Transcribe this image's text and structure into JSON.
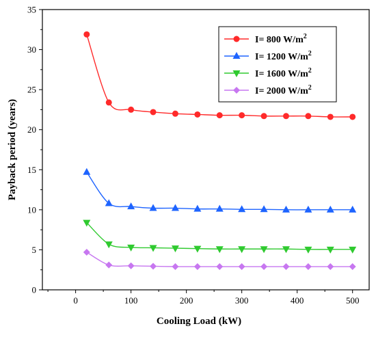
{
  "chart_data": {
    "type": "line",
    "title": "",
    "xlabel": "Cooling Load (kW)",
    "ylabel": "Payback period (years)",
    "xlim": [
      -60,
      530
    ],
    "ylim": [
      0,
      35
    ],
    "xticks": [
      0,
      100,
      200,
      300,
      400,
      500
    ],
    "yticks": [
      0,
      5,
      10,
      15,
      20,
      25,
      30,
      35
    ],
    "legend_position": "top-right",
    "grid": false,
    "x": [
      20,
      60,
      100,
      140,
      180,
      220,
      260,
      300,
      340,
      380,
      420,
      460,
      500
    ],
    "series": [
      {
        "legend_prefix": "I= 800 W/m",
        "legend_sup": "2",
        "color": "#ff2a2a",
        "marker": "circle",
        "values": [
          31.9,
          23.4,
          22.5,
          22.2,
          22.0,
          21.9,
          21.8,
          21.8,
          21.7,
          21.7,
          21.7,
          21.6,
          21.6
        ]
      },
      {
        "legend_prefix": "I= 1200 W/m",
        "legend_sup": "2",
        "color": "#1e64ff",
        "marker": "triangle-up",
        "values": [
          14.7,
          10.8,
          10.4,
          10.2,
          10.2,
          10.1,
          10.1,
          10.05,
          10.05,
          10.0,
          10.0,
          10.0,
          10.0
        ]
      },
      {
        "legend_prefix": "I= 1600 W/m",
        "legend_sup": "2",
        "color": "#2fca2f",
        "marker": "triangle-down",
        "values": [
          8.4,
          5.7,
          5.3,
          5.25,
          5.2,
          5.15,
          5.1,
          5.1,
          5.1,
          5.1,
          5.05,
          5.05,
          5.05
        ]
      },
      {
        "legend_prefix": "I= 2000 W/m",
        "legend_sup": "2",
        "color": "#c777f0",
        "marker": "diamond",
        "values": [
          4.7,
          3.1,
          3.0,
          2.95,
          2.9,
          2.9,
          2.9,
          2.9,
          2.9,
          2.9,
          2.9,
          2.9,
          2.9
        ]
      }
    ]
  }
}
